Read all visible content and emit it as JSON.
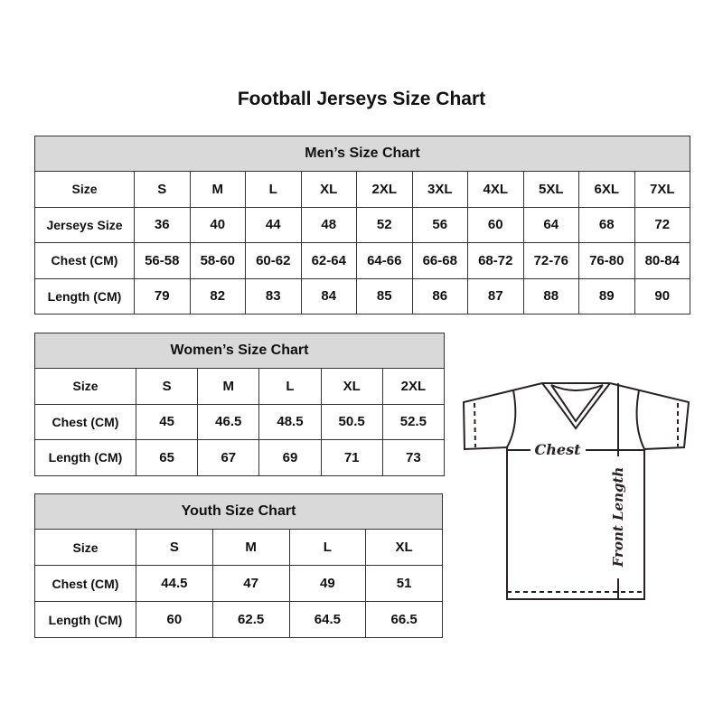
{
  "title": "Football Jerseys Size Chart",
  "men": {
    "heading": "Men’s Size Chart",
    "rows": [
      [
        "Size",
        "S",
        "M",
        "L",
        "XL",
        "2XL",
        "3XL",
        "4XL",
        "5XL",
        "6XL",
        "7XL"
      ],
      [
        "Jerseys Size",
        "36",
        "40",
        "44",
        "48",
        "52",
        "56",
        "60",
        "64",
        "68",
        "72"
      ],
      [
        "Chest (CM)",
        "56-58",
        "58-60",
        "60-62",
        "62-64",
        "64-66",
        "66-68",
        "68-72",
        "72-76",
        "76-80",
        "80-84"
      ],
      [
        "Length (CM)",
        "79",
        "82",
        "83",
        "84",
        "85",
        "86",
        "87",
        "88",
        "89",
        "90"
      ]
    ]
  },
  "women": {
    "heading": "Women’s Size Chart",
    "rows": [
      [
        "Size",
        "S",
        "M",
        "L",
        "XL",
        "2XL"
      ],
      [
        "Chest (CM)",
        "45",
        "46.5",
        "48.5",
        "50.5",
        "52.5"
      ],
      [
        "Length (CM)",
        "65",
        "67",
        "69",
        "71",
        "73"
      ]
    ]
  },
  "youth": {
    "heading": "Youth Size Chart",
    "rows": [
      [
        "Size",
        "S",
        "M",
        "L",
        "XL"
      ],
      [
        "Chest (CM)",
        "44.5",
        "47",
        "49",
        "51"
      ],
      [
        "Length (CM)",
        "60",
        "62.5",
        "64.5",
        "66.5"
      ]
    ]
  },
  "diagram": {
    "chest_label": "Chest",
    "length_label": "Front Length"
  },
  "colors": {
    "header_bg": "#d9d9d9",
    "border": "#333333"
  }
}
